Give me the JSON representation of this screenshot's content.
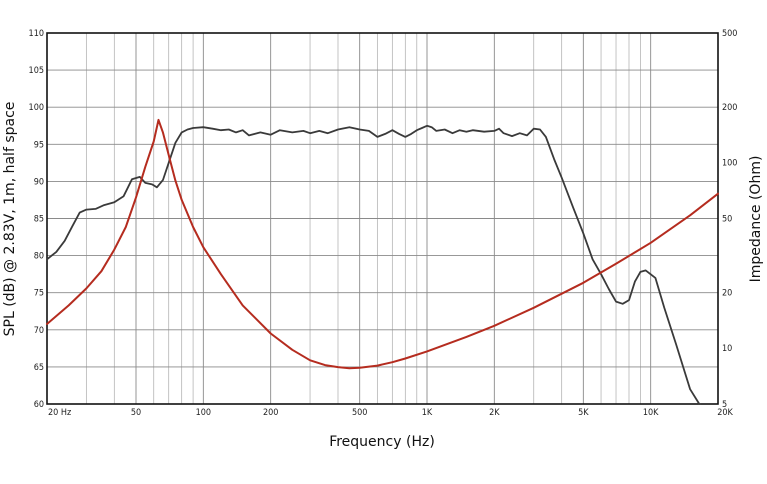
{
  "chart_data": {
    "type": "line",
    "title": "",
    "xlabel": "Frequency (Hz)",
    "ylabel": "SPL (dB) @ 2.83V, 1m, half space",
    "y2label": "Impedance (Ohm)",
    "xscale": "log",
    "xlim": [
      20,
      20000
    ],
    "ylim": [
      60,
      110
    ],
    "y2lim": [
      5,
      500
    ],
    "y2scale": "log",
    "grid": true,
    "x_tick_labels": [
      {
        "value": 20,
        "label": "20 Hz"
      },
      {
        "value": 50,
        "label": "50"
      },
      {
        "value": 100,
        "label": "100"
      },
      {
        "value": 200,
        "label": "200"
      },
      {
        "value": 500,
        "label": "500"
      },
      {
        "value": 1000,
        "label": "1K"
      },
      {
        "value": 2000,
        "label": "2K"
      },
      {
        "value": 5000,
        "label": "5K"
      },
      {
        "value": 10000,
        "label": "10K"
      },
      {
        "value": 20000,
        "label": "20K"
      }
    ],
    "y_ticks": [
      60,
      65,
      70,
      75,
      80,
      85,
      90,
      95,
      100,
      105,
      110
    ],
    "y2_ticks": [
      5,
      10,
      20,
      50,
      100,
      200,
      500
    ],
    "series": [
      {
        "name": "",
        "axis": "left",
        "color": "#3a3a3a",
        "points": [
          [
            20,
            79.5
          ],
          [
            22,
            80.5
          ],
          [
            24,
            82
          ],
          [
            26,
            84
          ],
          [
            28,
            85.8
          ],
          [
            30,
            86.2
          ],
          [
            33,
            86.3
          ],
          [
            36,
            86.8
          ],
          [
            40,
            87.2
          ],
          [
            44,
            88
          ],
          [
            48,
            90.3
          ],
          [
            52,
            90.6
          ],
          [
            55,
            89.8
          ],
          [
            59,
            89.6
          ],
          [
            62,
            89.2
          ],
          [
            66,
            90.2
          ],
          [
            70,
            92.5
          ],
          [
            75,
            95.2
          ],
          [
            80,
            96.6
          ],
          [
            85,
            97.0
          ],
          [
            90,
            97.2
          ],
          [
            100,
            97.3
          ],
          [
            110,
            97.1
          ],
          [
            120,
            96.9
          ],
          [
            130,
            97.0
          ],
          [
            140,
            96.6
          ],
          [
            150,
            96.9
          ],
          [
            160,
            96.2
          ],
          [
            180,
            96.6
          ],
          [
            200,
            96.3
          ],
          [
            220,
            96.9
          ],
          [
            250,
            96.6
          ],
          [
            280,
            96.8
          ],
          [
            300,
            96.5
          ],
          [
            330,
            96.8
          ],
          [
            360,
            96.5
          ],
          [
            400,
            97.0
          ],
          [
            450,
            97.3
          ],
          [
            500,
            97.0
          ],
          [
            550,
            96.8
          ],
          [
            600,
            96.0
          ],
          [
            650,
            96.4
          ],
          [
            700,
            96.9
          ],
          [
            750,
            96.4
          ],
          [
            800,
            96.0
          ],
          [
            850,
            96.4
          ],
          [
            900,
            96.9
          ],
          [
            950,
            97.2
          ],
          [
            1000,
            97.5
          ],
          [
            1050,
            97.3
          ],
          [
            1100,
            96.8
          ],
          [
            1200,
            97.0
          ],
          [
            1300,
            96.5
          ],
          [
            1400,
            96.9
          ],
          [
            1500,
            96.7
          ],
          [
            1600,
            96.9
          ],
          [
            1800,
            96.7
          ],
          [
            2000,
            96.8
          ],
          [
            2100,
            97.1
          ],
          [
            2200,
            96.5
          ],
          [
            2400,
            96.1
          ],
          [
            2600,
            96.5
          ],
          [
            2800,
            96.2
          ],
          [
            3000,
            97.1
          ],
          [
            3200,
            97.0
          ],
          [
            3400,
            96.0
          ],
          [
            3700,
            93.0
          ],
          [
            4000,
            90.5
          ],
          [
            4500,
            86.5
          ],
          [
            5000,
            83.0
          ],
          [
            5500,
            79.5
          ],
          [
            6000,
            77.5
          ],
          [
            6500,
            75.5
          ],
          [
            7000,
            73.8
          ],
          [
            7500,
            73.5
          ],
          [
            8000,
            74.0
          ],
          [
            8500,
            76.5
          ],
          [
            9000,
            77.8
          ],
          [
            9500,
            78.0
          ],
          [
            10500,
            77.0
          ],
          [
            11500,
            73.0
          ],
          [
            13000,
            68.0
          ],
          [
            15000,
            62.0
          ],
          [
            16500,
            59.5
          ]
        ]
      },
      {
        "name": "",
        "axis": "right",
        "color": "#b52c1f",
        "points": [
          [
            20,
            13.5
          ],
          [
            25,
            17
          ],
          [
            30,
            21
          ],
          [
            35,
            26
          ],
          [
            40,
            34
          ],
          [
            45,
            45
          ],
          [
            50,
            65
          ],
          [
            55,
            95
          ],
          [
            60,
            130
          ],
          [
            63,
            170
          ],
          [
            66,
            145
          ],
          [
            70,
            110
          ],
          [
            75,
            80
          ],
          [
            80,
            63
          ],
          [
            90,
            45
          ],
          [
            100,
            35
          ],
          [
            120,
            25
          ],
          [
            150,
            17
          ],
          [
            200,
            12
          ],
          [
            250,
            9.8
          ],
          [
            300,
            8.6
          ],
          [
            350,
            8.1
          ],
          [
            400,
            7.9
          ],
          [
            450,
            7.8
          ],
          [
            500,
            7.85
          ],
          [
            600,
            8.05
          ],
          [
            700,
            8.4
          ],
          [
            800,
            8.8
          ],
          [
            1000,
            9.6
          ],
          [
            1500,
            11.5
          ],
          [
            2000,
            13.2
          ],
          [
            3000,
            16.5
          ],
          [
            5000,
            22.5
          ],
          [
            7000,
            28.5
          ],
          [
            10000,
            37
          ],
          [
            15000,
            52
          ],
          [
            20000,
            68
          ]
        ]
      }
    ]
  }
}
